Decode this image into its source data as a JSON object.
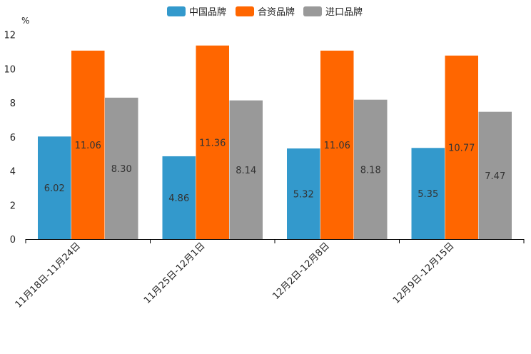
{
  "chart_data": {
    "type": "bar",
    "unit": "%",
    "categories": [
      "11月18日-11月24日",
      "11月25日-12月1日",
      "12月2日-12月8日",
      "12月9日-12月15日"
    ],
    "series": [
      {
        "name": "中国品牌",
        "color": "#3399cc",
        "values": [
          6.02,
          4.86,
          5.32,
          5.35
        ],
        "labels": [
          "6.02",
          "4.86",
          "5.32",
          "5.35"
        ]
      },
      {
        "name": "合资品牌",
        "color": "#ff6600",
        "values": [
          11.06,
          11.36,
          11.06,
          10.77
        ],
        "labels": [
          "11.06",
          "11.36",
          "11.06",
          "10.77"
        ]
      },
      {
        "name": "进口品牌",
        "color": "#999999",
        "values": [
          8.3,
          8.14,
          8.18,
          7.47
        ],
        "labels": [
          "8.30",
          "8.14",
          "8.18",
          "7.47"
        ]
      }
    ],
    "yticks": [
      "0",
      "2",
      "4",
      "6",
      "8",
      "10",
      "12"
    ],
    "ylim": [
      0,
      12
    ],
    "legend_position": "top-center"
  }
}
